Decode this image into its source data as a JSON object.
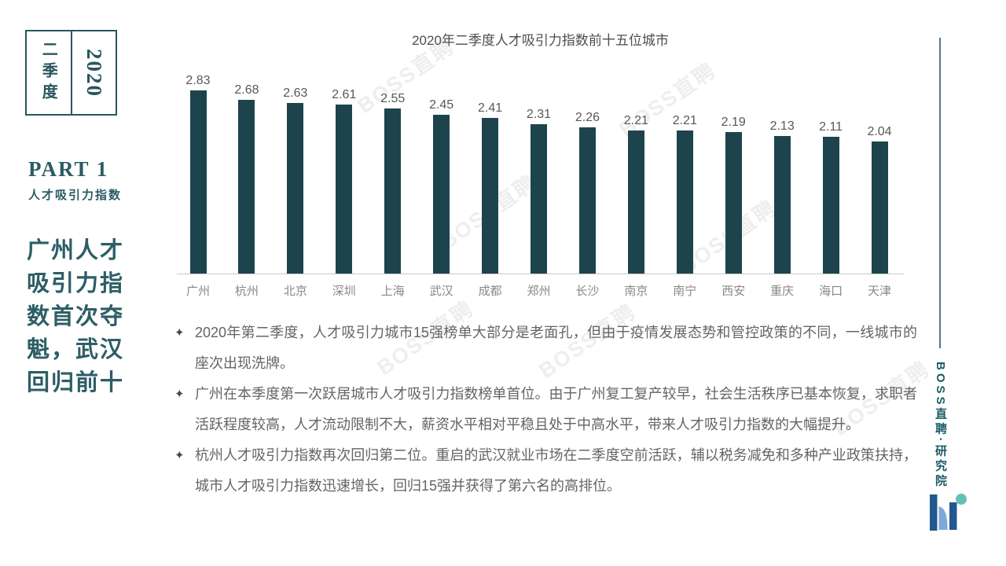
{
  "sidebar": {
    "quarter_label": "二季度",
    "year_label": "2020",
    "part_label": "PART 1",
    "part_subtitle": "人才吸引力指数",
    "headline": "广州人才吸引力指数首次夺魁，武汉回归前十",
    "headline_lines": [
      "广州人才",
      "吸引力指",
      "数首次夺",
      "魁，武汉",
      "回归前十"
    ]
  },
  "chart_data": {
    "type": "bar",
    "title": "2020年二季度人才吸引力指数前十五位城市",
    "categories": [
      "广州",
      "杭州",
      "北京",
      "深圳",
      "上海",
      "武汉",
      "成都",
      "郑州",
      "长沙",
      "南京",
      "南宁",
      "西安",
      "重庆",
      "海口",
      "天津"
    ],
    "values": [
      2.83,
      2.68,
      2.63,
      2.61,
      2.55,
      2.45,
      2.41,
      2.31,
      2.26,
      2.21,
      2.21,
      2.19,
      2.13,
      2.11,
      2.04
    ],
    "xlabel": "",
    "ylabel": "",
    "ylim": [
      0,
      3
    ],
    "grid": false,
    "value_labels": true,
    "bar_color": "#1d444c"
  },
  "bullets": [
    {
      "marker": "✦",
      "text": "2020年第二季度，人才吸引力城市15强榜单大部分是老面孔，但由于疫情发展态势和管控政策的不同，一线城市的座次出现洗牌。"
    },
    {
      "marker": "✦",
      "text": "广州在本季度第一次跃居城市人才吸引力指数榜单首位。由于广州复工复产较早，社会生活秩序已基本恢复，求职者活跃程度较高，人才流动限制不大，薪资水平相对平稳且处于中高水平，带来人才吸引力指数的大幅提升。"
    },
    {
      "marker": "✦",
      "text": "杭州人才吸引力指数再次回归第二位。重启的武汉就业市场在二季度空前活跃，辅以税务减免和多种产业政策扶持，城市人才吸引力指数迅速增长，回归15强并获得了第六名的高排位。"
    }
  ],
  "rightbar": {
    "source_label": "BOSS直聘·研究院",
    "logo_name": "boss-zhipin-logo"
  },
  "watermark": {
    "text": "BOSS直聘"
  },
  "colors": {
    "bar": "#1d444c",
    "accent_teal": "#2a565e",
    "headline_teal": "#2d5e66",
    "source_teal": "#1a5b66",
    "divider": "#55798a",
    "logo_dark_blue": "#20588f",
    "logo_light_blue": "#7fa8d9",
    "logo_teal_dot": "#63c1b8",
    "axis_gray": "#c9c9c9",
    "body_gray": "#646464"
  }
}
